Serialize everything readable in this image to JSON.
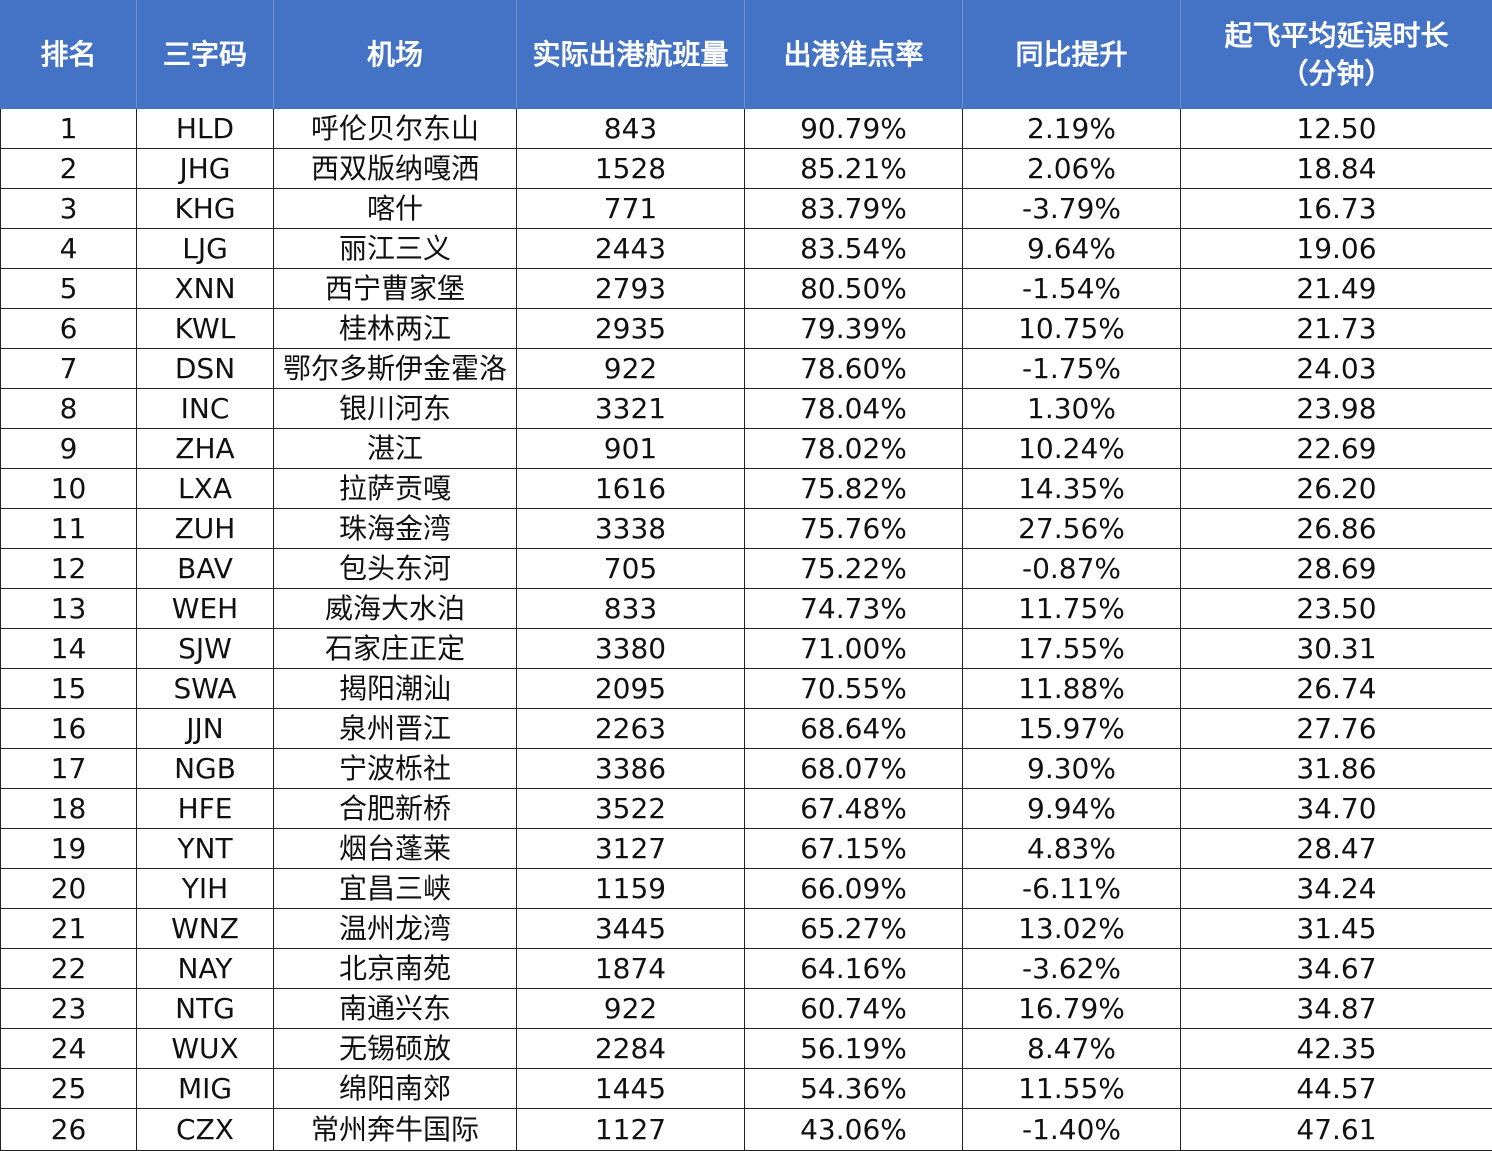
{
  "headers": {
    "rank": "排名",
    "code": "三字码",
    "airport": "机场",
    "flights": "实际出港航班量",
    "ontime": "出港准点率",
    "yoy": "同比提升",
    "delay_line1": "起飞平均延误时长",
    "delay_line2": "（分钟）"
  },
  "rows": [
    {
      "rank": "1",
      "code": "HLD",
      "airport": "呼伦贝尔东山",
      "flights": "843",
      "ontime": "90.79%",
      "yoy": "2.19%",
      "delay": "12.50"
    },
    {
      "rank": "2",
      "code": "JHG",
      "airport": "西双版纳嘎洒",
      "flights": "1528",
      "ontime": "85.21%",
      "yoy": "2.06%",
      "delay": "18.84"
    },
    {
      "rank": "3",
      "code": "KHG",
      "airport": "喀什",
      "flights": "771",
      "ontime": "83.79%",
      "yoy": "-3.79%",
      "delay": "16.73"
    },
    {
      "rank": "4",
      "code": "LJG",
      "airport": "丽江三义",
      "flights": "2443",
      "ontime": "83.54%",
      "yoy": "9.64%",
      "delay": "19.06"
    },
    {
      "rank": "5",
      "code": "XNN",
      "airport": "西宁曹家堡",
      "flights": "2793",
      "ontime": "80.50%",
      "yoy": "-1.54%",
      "delay": "21.49"
    },
    {
      "rank": "6",
      "code": "KWL",
      "airport": "桂林两江",
      "flights": "2935",
      "ontime": "79.39%",
      "yoy": "10.75%",
      "delay": "21.73"
    },
    {
      "rank": "7",
      "code": "DSN",
      "airport": "鄂尔多斯伊金霍洛",
      "flights": "922",
      "ontime": "78.60%",
      "yoy": "-1.75%",
      "delay": "24.03"
    },
    {
      "rank": "8",
      "code": "INC",
      "airport": "银川河东",
      "flights": "3321",
      "ontime": "78.04%",
      "yoy": "1.30%",
      "delay": "23.98"
    },
    {
      "rank": "9",
      "code": "ZHA",
      "airport": "湛江",
      "flights": "901",
      "ontime": "78.02%",
      "yoy": "10.24%",
      "delay": "22.69"
    },
    {
      "rank": "10",
      "code": "LXA",
      "airport": "拉萨贡嘎",
      "flights": "1616",
      "ontime": "75.82%",
      "yoy": "14.35%",
      "delay": "26.20"
    },
    {
      "rank": "11",
      "code": "ZUH",
      "airport": "珠海金湾",
      "flights": "3338",
      "ontime": "75.76%",
      "yoy": "27.56%",
      "delay": "26.86"
    },
    {
      "rank": "12",
      "code": "BAV",
      "airport": "包头东河",
      "flights": "705",
      "ontime": "75.22%",
      "yoy": "-0.87%",
      "delay": "28.69"
    },
    {
      "rank": "13",
      "code": "WEH",
      "airport": "威海大水泊",
      "flights": "833",
      "ontime": "74.73%",
      "yoy": "11.75%",
      "delay": "23.50"
    },
    {
      "rank": "14",
      "code": "SJW",
      "airport": "石家庄正定",
      "flights": "3380",
      "ontime": "71.00%",
      "yoy": "17.55%",
      "delay": "30.31"
    },
    {
      "rank": "15",
      "code": "SWA",
      "airport": "揭阳潮汕",
      "flights": "2095",
      "ontime": "70.55%",
      "yoy": "11.88%",
      "delay": "26.74"
    },
    {
      "rank": "16",
      "code": "JJN",
      "airport": "泉州晋江",
      "flights": "2263",
      "ontime": "68.64%",
      "yoy": "15.97%",
      "delay": "27.76"
    },
    {
      "rank": "17",
      "code": "NGB",
      "airport": "宁波栎社",
      "flights": "3386",
      "ontime": "68.07%",
      "yoy": "9.30%",
      "delay": "31.86"
    },
    {
      "rank": "18",
      "code": "HFE",
      "airport": "合肥新桥",
      "flights": "3522",
      "ontime": "67.48%",
      "yoy": "9.94%",
      "delay": "34.70"
    },
    {
      "rank": "19",
      "code": "YNT",
      "airport": "烟台蓬莱",
      "flights": "3127",
      "ontime": "67.15%",
      "yoy": "4.83%",
      "delay": "28.47"
    },
    {
      "rank": "20",
      "code": "YIH",
      "airport": "宜昌三峡",
      "flights": "1159",
      "ontime": "66.09%",
      "yoy": "-6.11%",
      "delay": "34.24"
    },
    {
      "rank": "21",
      "code": "WNZ",
      "airport": "温州龙湾",
      "flights": "3445",
      "ontime": "65.27%",
      "yoy": "13.02%",
      "delay": "31.45"
    },
    {
      "rank": "22",
      "code": "NAY",
      "airport": "北京南苑",
      "flights": "1874",
      "ontime": "64.16%",
      "yoy": "-3.62%",
      "delay": "34.67"
    },
    {
      "rank": "23",
      "code": "NTG",
      "airport": "南通兴东",
      "flights": "922",
      "ontime": "60.74%",
      "yoy": "16.79%",
      "delay": "34.87"
    },
    {
      "rank": "24",
      "code": "WUX",
      "airport": "无锡硕放",
      "flights": "2284",
      "ontime": "56.19%",
      "yoy": "8.47%",
      "delay": "42.35"
    },
    {
      "rank": "25",
      "code": "MIG",
      "airport": "绵阳南郊",
      "flights": "1445",
      "ontime": "54.36%",
      "yoy": "11.55%",
      "delay": "44.57"
    },
    {
      "rank": "26",
      "code": "CZX",
      "airport": "常州奔牛国际",
      "flights": "1127",
      "ontime": "43.06%",
      "yoy": "-1.40%",
      "delay": "47.61"
    }
  ]
}
